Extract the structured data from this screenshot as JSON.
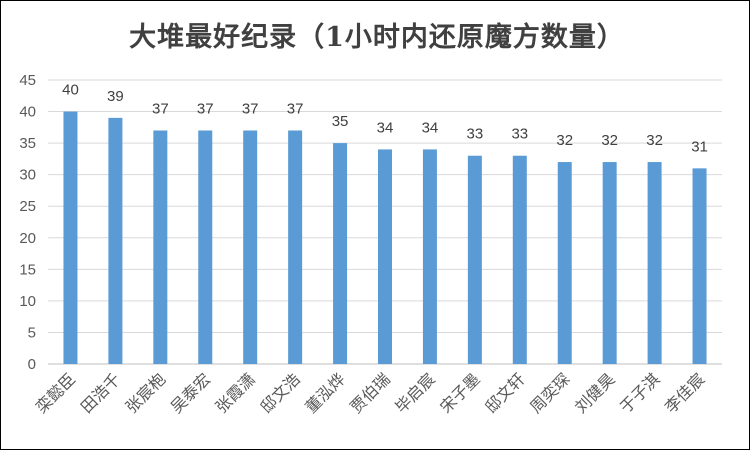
{
  "chart_data": {
    "type": "bar",
    "title": "大堆最好纪录（1小时内还原魔方数量）",
    "xlabel": "",
    "ylabel": "",
    "categories": [
      "栾懿臣",
      "田浩千",
      "张宸枹",
      "吴泰宏",
      "张霞潇",
      "邸文浩",
      "董泓烨",
      "贾伯瑞",
      "毕启宸",
      "宋子墨",
      "邸文轩",
      "周奕琛",
      "刘健昊",
      "于子淇",
      "李佳宸"
    ],
    "values": [
      40,
      39,
      37,
      37,
      37,
      37,
      35,
      34,
      34,
      33,
      33,
      32,
      32,
      32,
      31
    ],
    "ylim": [
      0,
      45
    ],
    "yticks": [
      0,
      5,
      10,
      15,
      20,
      25,
      30,
      35,
      40,
      45
    ],
    "grid": true,
    "legend": "none",
    "colors": {
      "bar": "#5b9bd5",
      "grid": "#d9d9d9",
      "axis": "#bfbfbf"
    }
  }
}
